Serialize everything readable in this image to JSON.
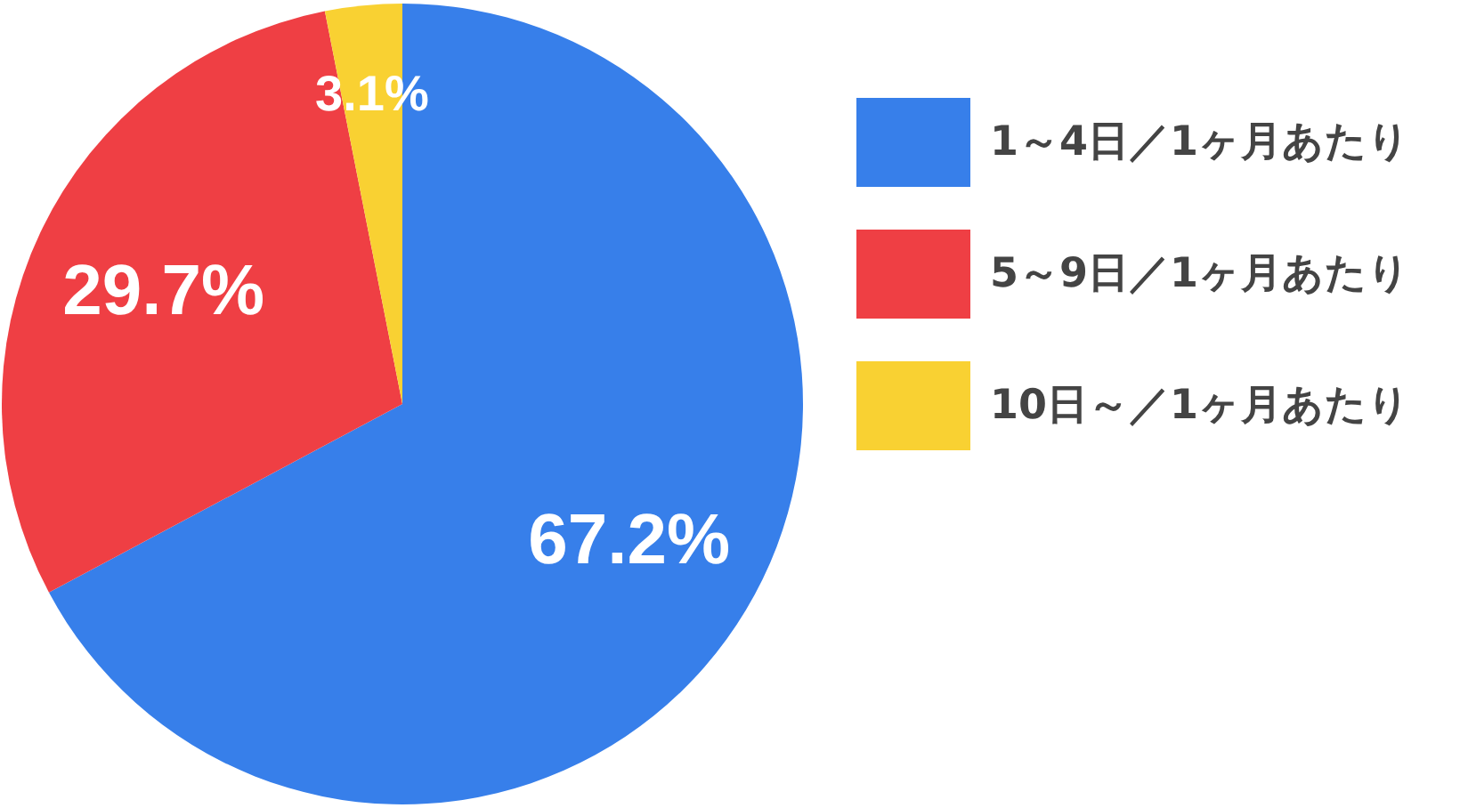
{
  "chart_data": {
    "type": "pie",
    "categories": [
      "1～4日／1ヶ月あたり",
      "5～9日／1ヶ月あたり",
      "10日～／1ヶ月あたり"
    ],
    "values": [
      67.2,
      29.7,
      3.1
    ],
    "colors": [
      "#377fea",
      "#ef3f44",
      "#f9d132"
    ],
    "value_labels": [
      "67.2%",
      "29.7%",
      "3.1%"
    ],
    "legend": "right"
  }
}
